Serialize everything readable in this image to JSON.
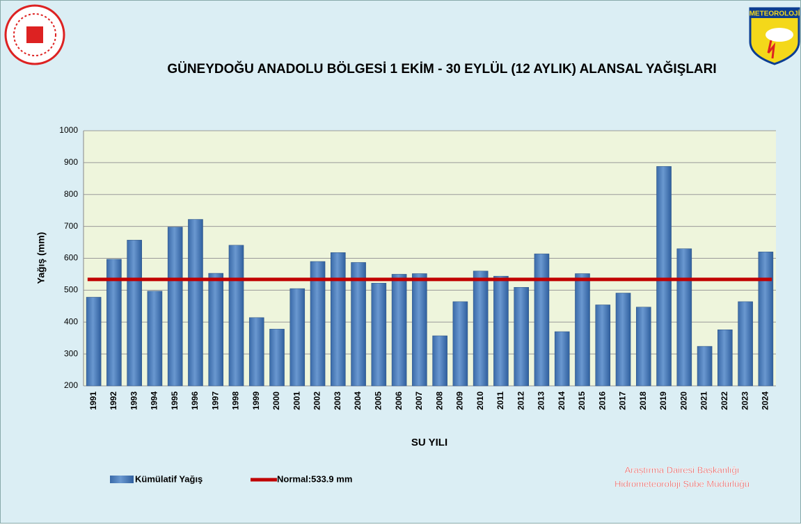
{
  "chart_data": {
    "type": "bar",
    "title": "GÜNEYDOĞU ANADOLU BÖLGESİ  1 EKİM - 30 EYLÜL (12 AYLIK) ALANSAL YAĞIŞLARI",
    "xlabel": "SU YILI",
    "ylabel": "Yağış (mm)",
    "categories": [
      "1991",
      "1992",
      "1993",
      "1994",
      "1995",
      "1996",
      "1997",
      "1998",
      "1999",
      "2000",
      "2001",
      "2002",
      "2003",
      "2004",
      "2005",
      "2006",
      "2007",
      "2008",
      "2009",
      "2010",
      "2011",
      "2012",
      "2013",
      "2014",
      "2015",
      "2016",
      "2017",
      "2018",
      "2019",
      "2020",
      "2021",
      "2022",
      "2023",
      "2024"
    ],
    "series": [
      {
        "name": "Kümülatif Yağış",
        "color": "#4f81bd",
        "values": [
          478,
          597,
          657,
          497,
          698,
          722,
          553,
          641,
          414,
          378,
          505,
          590,
          618,
          587,
          522,
          550,
          552,
          357,
          464,
          560,
          544,
          509,
          614,
          370,
          552,
          454,
          491,
          447,
          888,
          630,
          324,
          376,
          464,
          620
        ]
      },
      {
        "name": "Normal:533.9 mm",
        "color": "#c00000",
        "value": 533.9
      }
    ],
    "ylim": [
      200,
      1000
    ],
    "yticks": [
      200,
      300,
      400,
      500,
      600,
      700,
      800,
      900,
      1000
    ],
    "grid": true,
    "credits": [
      "Araştırma Dairesi Başkanlığı",
      "Hidrometeoroloji Şube Müdürlüğü"
    ],
    "logo_text": "METEOROLOJİ"
  }
}
